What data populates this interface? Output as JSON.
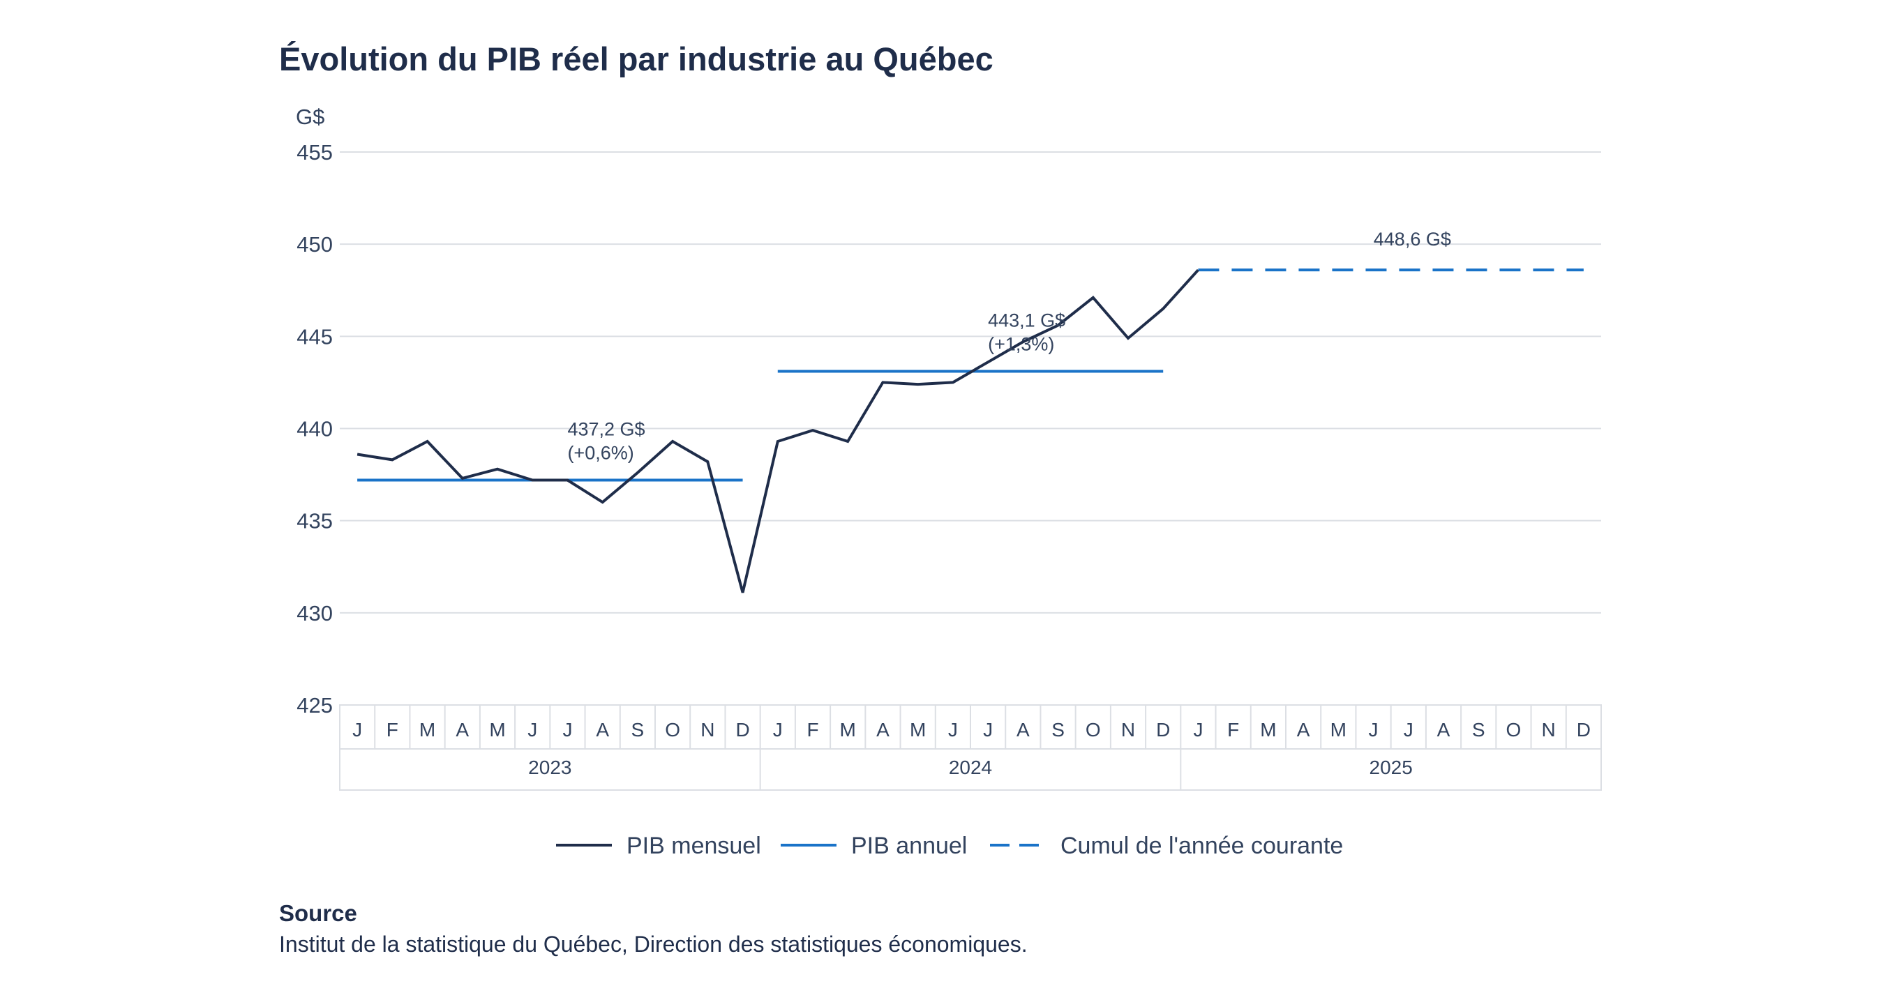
{
  "chart_data": {
    "type": "line",
    "title": "Évolution du PIB réel par industrie au Québec",
    "ylabel": "G$",
    "ylim": [
      425,
      455
    ],
    "yticks": [
      425,
      430,
      435,
      440,
      445,
      450,
      455
    ],
    "grid": true,
    "legend_position": "bottom",
    "years": [
      "2023",
      "2024",
      "2025"
    ],
    "month_labels": [
      "J",
      "F",
      "M",
      "A",
      "M",
      "J",
      "J",
      "A",
      "S",
      "O",
      "N",
      "D"
    ],
    "series": [
      {
        "name": "PIB mensuel",
        "style": "solid",
        "color": "#1f2d4a",
        "values": [
          438.6,
          438.3,
          439.3,
          437.3,
          437.8,
          437.2,
          437.2,
          436.0,
          437.6,
          439.3,
          438.2,
          431.1,
          439.3,
          439.9,
          439.3,
          442.5,
          442.4,
          442.5,
          443.6,
          444.7,
          445.6,
          447.1,
          444.9,
          446.5,
          448.6
        ]
      },
      {
        "name": "PIB annuel",
        "style": "solid",
        "color": "#1a73c8",
        "segments": [
          {
            "year": "2023",
            "value": 437.2,
            "label": "437,2 G$",
            "change": "(+0,6%)"
          },
          {
            "year": "2024",
            "value": 443.1,
            "label": "443,1 G$",
            "change": "(+1,3%)"
          }
        ]
      },
      {
        "name": "Cumul de l'année courante",
        "style": "dashed",
        "color": "#1a73c8",
        "segments": [
          {
            "year": "2025",
            "value": 448.6,
            "label": "448,6 G$"
          }
        ]
      }
    ]
  },
  "source": {
    "heading": "Source",
    "text": "Institut de la statistique du Québec, Direction des statistiques économiques."
  }
}
